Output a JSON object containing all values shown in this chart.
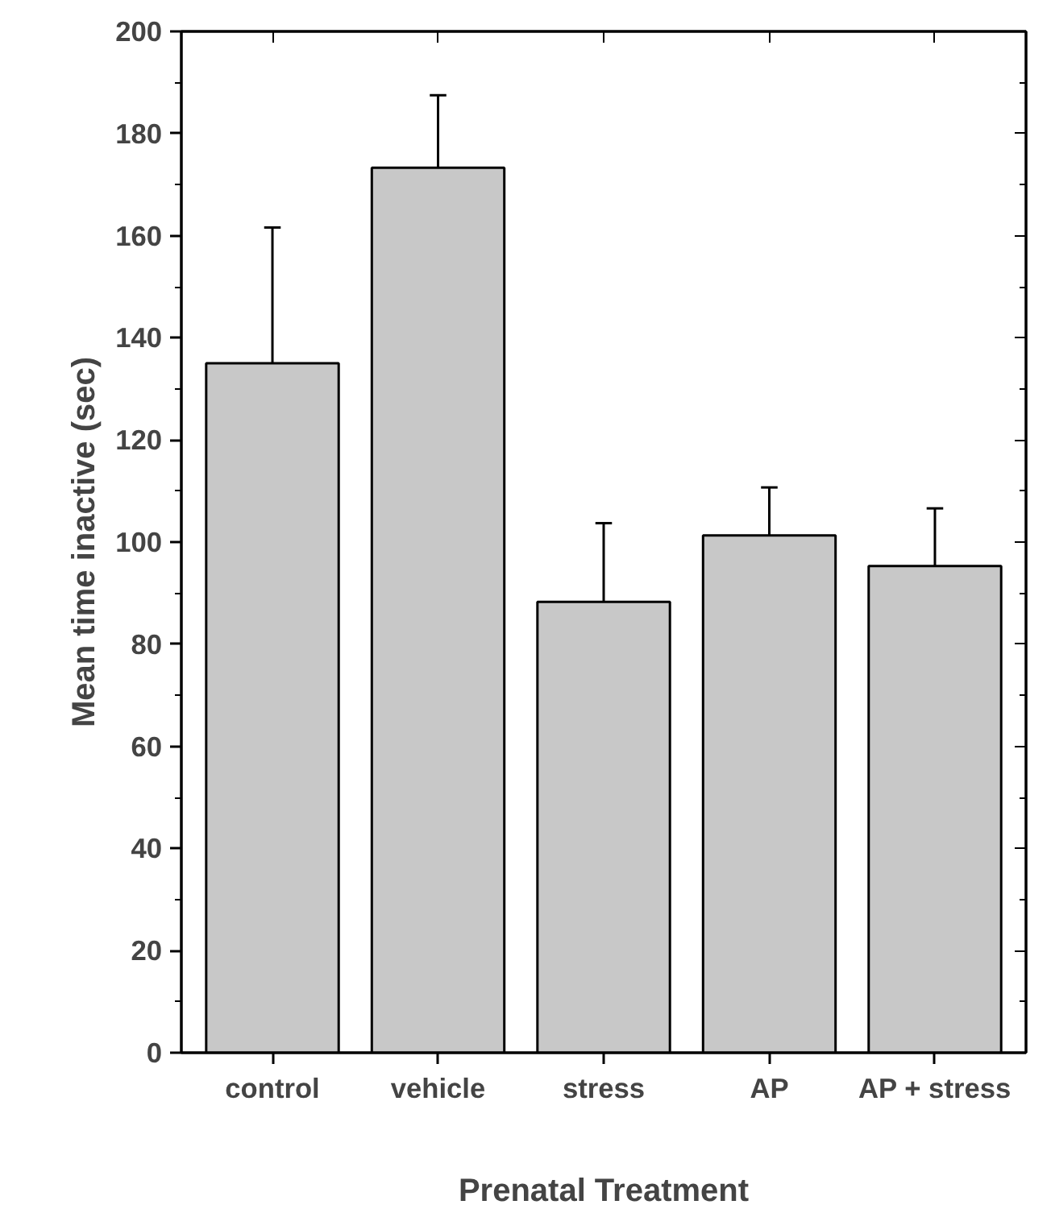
{
  "chart_data": {
    "type": "bar",
    "xlabel": "Prenatal Treatment",
    "ylabel": "Mean time inactive (sec)",
    "categories": [
      "control",
      "vehicle",
      "stress",
      "AP",
      "AP + stress"
    ],
    "values": [
      135.0,
      173.3,
      88.3,
      101.3,
      95.3
    ],
    "errors": [
      [
        135.0,
        161.6
      ],
      [
        173.3,
        187.5
      ],
      [
        88.3,
        103.7
      ],
      [
        101.3,
        110.7
      ],
      [
        95.3,
        106.6
      ]
    ],
    "color": "#c8c8c8",
    "ylim": [
      0,
      200
    ],
    "yticks": [
      0,
      20,
      40,
      60,
      80,
      100,
      120,
      140,
      160,
      180,
      200
    ],
    "grid": false
  }
}
